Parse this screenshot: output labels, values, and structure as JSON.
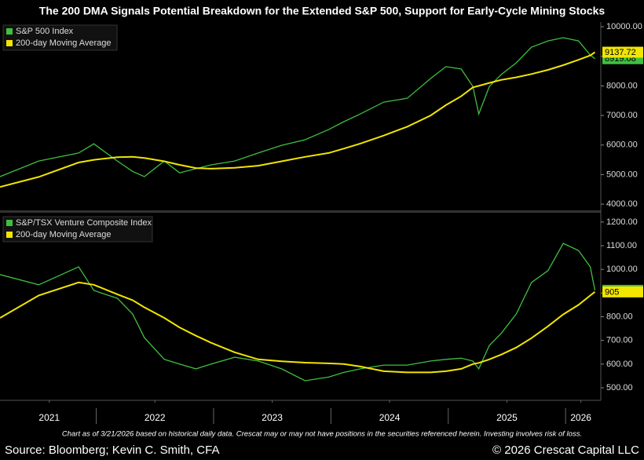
{
  "title": "The 200 DMA Signals Potential Breakdown for the Extended S&P 500, Support for Early-Cycle Mining Stocks",
  "footnote": "Chart as of 3/21/2026 based on historical daily data. Crescat may or may not have positions in the securities referenced herein. Investing involves risk of loss.",
  "source": "Source: Bloomberg; Kevin C. Smith, CFA",
  "copyright": "© 2026 Crescat Capital LLC",
  "chart_data": [
    {
      "type": "line",
      "legend": "upper left",
      "x": [
        2021.18,
        2021.51,
        2021.85,
        2021.98,
        2022.18,
        2022.31,
        2022.41,
        2022.58,
        2022.71,
        2022.85,
        2022.98,
        2023.18,
        2023.38,
        2023.58,
        2023.78,
        2023.98,
        2024.11,
        2024.25,
        2024.45,
        2024.65,
        2024.85,
        2024.98,
        2025.11,
        2025.21,
        2025.26,
        2025.35,
        2025.45,
        2025.58,
        2025.71,
        2025.85,
        2025.98,
        2026.11,
        2026.21,
        2026.25
      ],
      "xlim": [
        2021.18,
        2026.3
      ],
      "ylim": [
        3790,
        10160
      ],
      "yticks": [
        {
          "value": 4000,
          "label": "4000.00"
        },
        {
          "value": 5000,
          "label": "5000.00"
        },
        {
          "value": 6000,
          "label": "6000.00"
        },
        {
          "value": 7000,
          "label": "7000.00"
        },
        {
          "value": 8000,
          "label": "8000.00"
        },
        {
          "value": 9000,
          "label": "9000.00"
        },
        {
          "value": 10000,
          "label": "10000.00"
        }
      ],
      "series": [
        {
          "name": "S&P 500 Index",
          "color": "#3fbf3f",
          "values": [
            4930,
            5460,
            5730,
            6040,
            5460,
            5110,
            4930,
            5460,
            5060,
            5200,
            5330,
            5460,
            5730,
            5990,
            6180,
            6520,
            6790,
            7050,
            7450,
            7580,
            8250,
            8650,
            8570,
            7980,
            7050,
            7980,
            8380,
            8780,
            9310,
            9520,
            9630,
            9520,
            9040,
            8919.08
          ]
        },
        {
          "name": "200-day Moving Average",
          "color": "#f2e500",
          "values": [
            4580,
            4920,
            5410,
            5500,
            5590,
            5600,
            5560,
            5450,
            5330,
            5220,
            5200,
            5230,
            5300,
            5450,
            5600,
            5730,
            5880,
            6050,
            6320,
            6620,
            7000,
            7350,
            7650,
            7950,
            8000,
            8100,
            8200,
            8290,
            8400,
            8540,
            8700,
            8880,
            9030,
            9137.72
          ]
        }
      ]
    },
    {
      "type": "line",
      "legend": "upper left",
      "x": [
        2021.18,
        2021.51,
        2021.85,
        2021.98,
        2022.18,
        2022.31,
        2022.41,
        2022.58,
        2022.71,
        2022.85,
        2022.98,
        2023.18,
        2023.38,
        2023.58,
        2023.78,
        2023.98,
        2024.11,
        2024.25,
        2024.45,
        2024.65,
        2024.85,
        2024.98,
        2025.11,
        2025.21,
        2025.26,
        2025.35,
        2025.45,
        2025.58,
        2025.71,
        2025.85,
        2025.98,
        2026.11,
        2026.21,
        2026.25
      ],
      "xlim": [
        2021.18,
        2026.3
      ],
      "xticks": [
        {
          "value": 2021.6,
          "label": "2021"
        },
        {
          "value": 2022.5,
          "label": "2022"
        },
        {
          "value": 2023.5,
          "label": "2023"
        },
        {
          "value": 2024.5,
          "label": "2024"
        },
        {
          "value": 2025.5,
          "label": "2025"
        },
        {
          "value": 2026.13,
          "label": "2026"
        }
      ],
      "xminorticks": [
        2022,
        2023,
        2024,
        2025,
        2026
      ],
      "ylim": [
        447,
        1236
      ],
      "yticks": [
        {
          "value": 500,
          "label": "500.00"
        },
        {
          "value": 600,
          "label": "600.00"
        },
        {
          "value": 700,
          "label": "700.00"
        },
        {
          "value": 800,
          "label": "800.00"
        },
        {
          "value": 900,
          "label": "900.00"
        },
        {
          "value": 1000,
          "label": "1000.00"
        },
        {
          "value": 1100,
          "label": "1100.00"
        },
        {
          "value": 1200,
          "label": "1200.00"
        }
      ],
      "series": [
        {
          "name": "S&P/TSX Venture Composite Index",
          "color": "#3fbf3f",
          "values": [
            978,
            935,
            1011,
            911,
            878,
            812,
            712,
            620,
            600,
            580,
            600,
            629,
            613,
            580,
            530,
            545,
            565,
            580,
            596,
            596,
            613,
            620,
            625,
            613,
            580,
            679,
            729,
            812,
            945,
            995,
            1110,
            1080,
            1011,
            911.53
          ]
        },
        {
          "name": "200-day Moving Average",
          "color": "#f2e500",
          "values": [
            795,
            890,
            945,
            935,
            895,
            870,
            840,
            795,
            755,
            720,
            690,
            650,
            620,
            612,
            606,
            603,
            600,
            590,
            570,
            565,
            565,
            570,
            580,
            600,
            605,
            620,
            640,
            670,
            710,
            760,
            810,
            850,
            890,
            905
          ]
        }
      ]
    }
  ]
}
